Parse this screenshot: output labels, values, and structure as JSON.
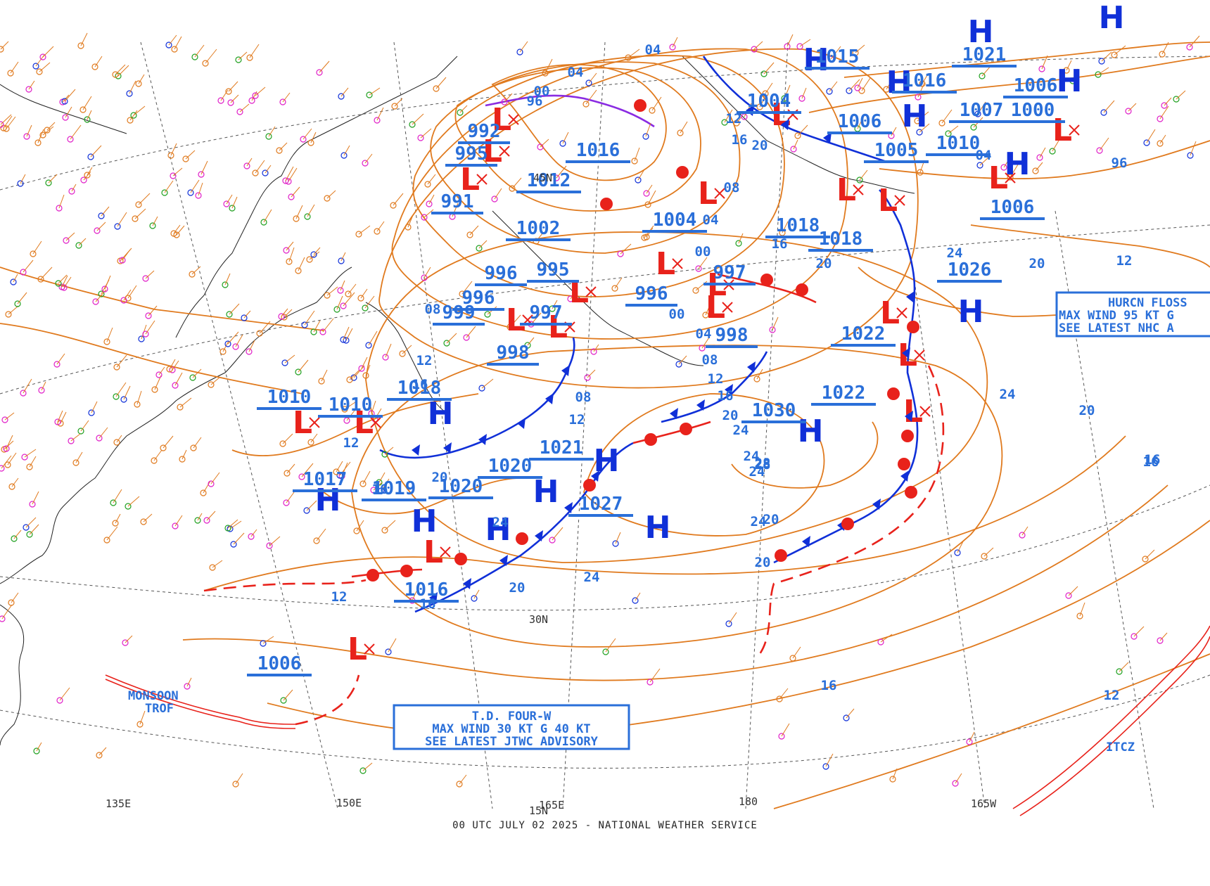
{
  "footer": "00 UTC JULY 02 2025 - NATIONAL WEATHER SERVICE",
  "colors": {
    "isobar": "#e07a1e",
    "label": "#2a6fd9",
    "high": "#1030d8",
    "low": "#e8221b",
    "cold_front": "#1030d8",
    "warm_front": "#e8221b",
    "occluded": "#8a2be2"
  },
  "boxes": {
    "td_four_w": [
      "T.D. FOUR-W",
      "MAX WIND 30 KT G 40 KT",
      "SEE LATEST JTWC ADVISORY"
    ],
    "flossie": [
      "HURCN FLOSS",
      "MAX WIND 95 KT G",
      "SEE LATEST NHC A"
    ]
  },
  "features": {
    "monsoon": [
      "MONSOON",
      "TROF"
    ],
    "itcz": "ITCZ"
  },
  "grid_labels": {
    "lon": [
      "150E",
      "165E",
      "180",
      "165W",
      "135E"
    ],
    "lat": [
      "30N",
      "15N",
      "45N"
    ]
  },
  "pressure_labels": [
    "992",
    "995",
    "991",
    "1012",
    "1016",
    "1002",
    "996",
    "995",
    "996",
    "999",
    "997",
    "998",
    "1018",
    "1010",
    "1010",
    "1017",
    "1019",
    "1020",
    "1020",
    "1021",
    "1027",
    "1016",
    "1006",
    "1004",
    "997",
    "996",
    "998",
    "1004",
    "1015",
    "1006",
    "1005",
    "1018",
    "1018",
    "1016",
    "1021",
    "1006",
    "1007",
    "1000",
    "1010",
    "1006",
    "1026",
    "1022",
    "1022",
    "1030"
  ],
  "isobar_labels": [
    "04",
    "00",
    "96",
    "04",
    "08",
    "12",
    "16",
    "20",
    "24",
    "28",
    "12",
    "16",
    "20",
    "24",
    "08",
    "12",
    "16",
    "20",
    "24",
    "12",
    "16",
    "20",
    "24",
    "08",
    "04",
    "00",
    "12",
    "16",
    "20",
    "12",
    "16",
    "08",
    "04",
    "00",
    "96",
    "04"
  ],
  "centers": {
    "H": 16,
    "L": 22
  }
}
